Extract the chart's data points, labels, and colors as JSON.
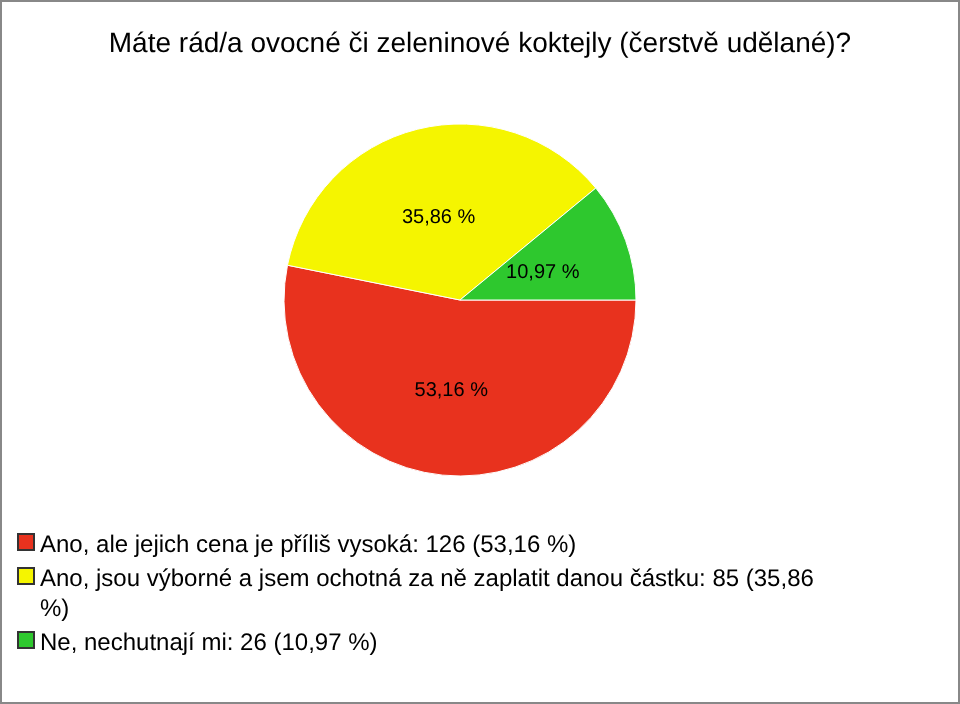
{
  "chart_data": {
    "type": "pie",
    "title": "Máte rád/a ovocné či zeleninové koktejly (čerstvě udělané)?",
    "categories": [
      "Ano, ale jejich cena je příliš vysoká: 126 (53,16 %)",
      "Ano, jsou výborné a jsem ochotná za ně zaplatit danou částku: 85 (35,86 %)",
      "Ne, nechutnají mi: 26 (10,97 %)"
    ],
    "values": [
      53.16,
      35.86,
      10.97
    ],
    "value_labels": [
      "53,16 %",
      "35,86 %",
      "10,97 %"
    ],
    "colors": [
      "#e8321e",
      "#f5f500",
      "#2ec82e"
    ],
    "legend": "bottom"
  }
}
